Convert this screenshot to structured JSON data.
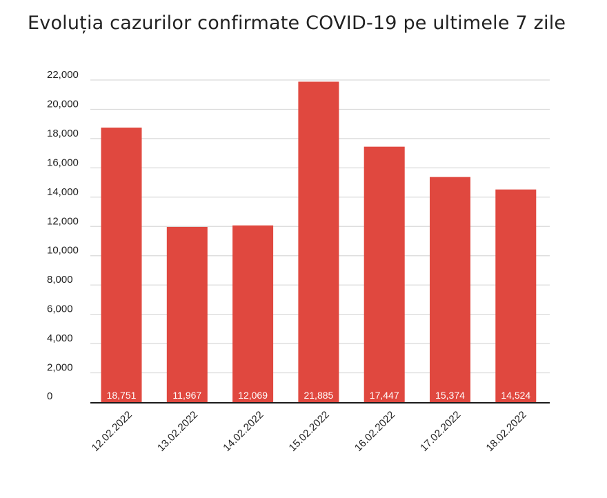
{
  "colors": {
    "bar": "#e0483f",
    "grid": "#d9d9d9",
    "axis": "#1a1a1a",
    "text": "#222222",
    "bar_label": "#ffffff"
  },
  "chart_data": {
    "type": "bar",
    "title": "Evoluția cazurilor confirmate COVID-19 pe ultimele 7 zile",
    "xlabel": "",
    "ylabel": "",
    "categories": [
      "12.02.2022",
      "13.02.2022",
      "14.02.2022",
      "15.02.2022",
      "16.02.2022",
      "17.02.2022",
      "18.02.2022"
    ],
    "values": [
      18751,
      11967,
      12069,
      21885,
      17447,
      15374,
      14524
    ],
    "value_labels": [
      "18,751",
      "11,967",
      "12,069",
      "21,885",
      "17,447",
      "15,374",
      "14,524"
    ],
    "ylim": [
      0,
      22000
    ],
    "yticks": [
      0,
      2000,
      4000,
      6000,
      8000,
      10000,
      12000,
      14000,
      16000,
      18000,
      20000,
      22000
    ],
    "ytick_labels": [
      "0",
      "2,000",
      "4,000",
      "6,000",
      "8,000",
      "10,000",
      "12,000",
      "14,000",
      "16,000",
      "18,000",
      "20,000",
      "22,000"
    ],
    "grid": true,
    "legend": "none",
    "data_labels_position": "inside-base"
  }
}
